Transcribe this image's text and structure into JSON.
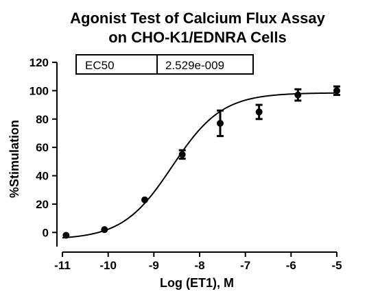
{
  "chart_data": {
    "type": "scatter",
    "title_lines": [
      "Agonist Test of Calcium Flux Assay",
      "on CHO-K1/EDNRA Cells"
    ],
    "xlabel": "Log (ET1), M",
    "ylabel": "%Stimulation",
    "xlim": [
      -11,
      -5
    ],
    "ylim": [
      -10,
      120
    ],
    "x_ticks": [
      -11,
      -10,
      -9,
      -8,
      -7,
      -6,
      -5
    ],
    "x_tick_labels": [
      "-11",
      "-10",
      "-9",
      "-8",
      "-7",
      "-6",
      "-5"
    ],
    "y_ticks": [
      0,
      20,
      40,
      60,
      80,
      100,
      120
    ],
    "y_tick_labels": [
      "0",
      "20",
      "40",
      "60",
      "80",
      "100",
      "120"
    ],
    "grid": false,
    "points": [
      {
        "x": -10.92,
        "y": -2,
        "err": 0
      },
      {
        "x": -10.08,
        "y": 2,
        "err": 0
      },
      {
        "x": -9.2,
        "y": 23,
        "err": 0
      },
      {
        "x": -8.38,
        "y": 55,
        "err": 3
      },
      {
        "x": -7.55,
        "y": 77,
        "err": 9
      },
      {
        "x": -6.7,
        "y": 85,
        "err": 5
      },
      {
        "x": -5.85,
        "y": 97,
        "err": 4
      },
      {
        "x": -5.0,
        "y": 100,
        "err": 3
      }
    ],
    "fit_curve": {
      "bottom": -5,
      "top": 98.5,
      "logEC50": -8.597,
      "hill": 0.8
    },
    "ec50_table": {
      "label": "EC50",
      "value": "2.529e-009"
    }
  }
}
